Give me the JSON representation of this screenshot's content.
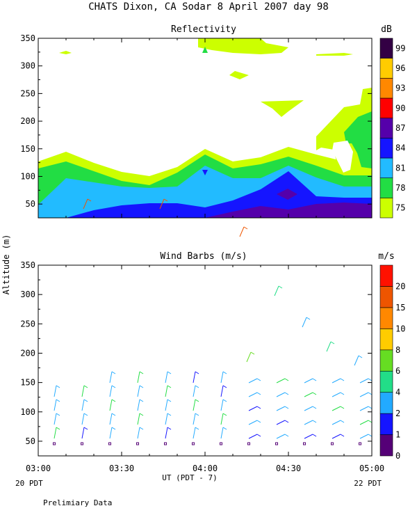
{
  "title": "CHATS Dixon, CA  Sodar   8 April 2007  day  98",
  "footer": "Prelimiary Data",
  "x_axis": {
    "label": "UT  (PDT - 7)",
    "ticks": [
      "03:00",
      "03:30",
      "04:00",
      "04:30",
      "05:00"
    ],
    "left_note": "20 PDT",
    "right_note": "22 PDT"
  },
  "y_axis_label": "Altitude (m)",
  "chart_data": [
    {
      "type": "heatmap",
      "title": "Reflectivity",
      "ylim": [
        25,
        350
      ],
      "y_ticks": [
        50,
        100,
        150,
        200,
        250,
        300,
        350
      ],
      "colorbar": {
        "unit": "dB",
        "labels": [
          "75",
          "78",
          "81",
          "84",
          "87",
          "90",
          "93",
          "96",
          "99"
        ],
        "colors": [
          "#ccff00",
          "#22dd44",
          "#22bbff",
          "#1515ff",
          "#5500aa",
          "#ff0000",
          "#ff8800",
          "#ffcc00",
          "#330044"
        ]
      }
    },
    {
      "type": "scatter",
      "title": "Wind Barbs (m/s)",
      "ylim": [
        25,
        350
      ],
      "y_ticks": [
        50,
        100,
        150,
        200,
        250,
        300,
        350
      ],
      "colorbar": {
        "unit": "m/s",
        "labels": [
          "0",
          "1",
          "2",
          "4",
          "6",
          "8",
          "10",
          "15",
          "20"
        ],
        "colors": [
          "#550077",
          "#1515ff",
          "#22aaff",
          "#22dd88",
          "#66dd22",
          "#ffcc00",
          "#ff8800",
          "#ee5500",
          "#ff1100"
        ]
      }
    }
  ]
}
